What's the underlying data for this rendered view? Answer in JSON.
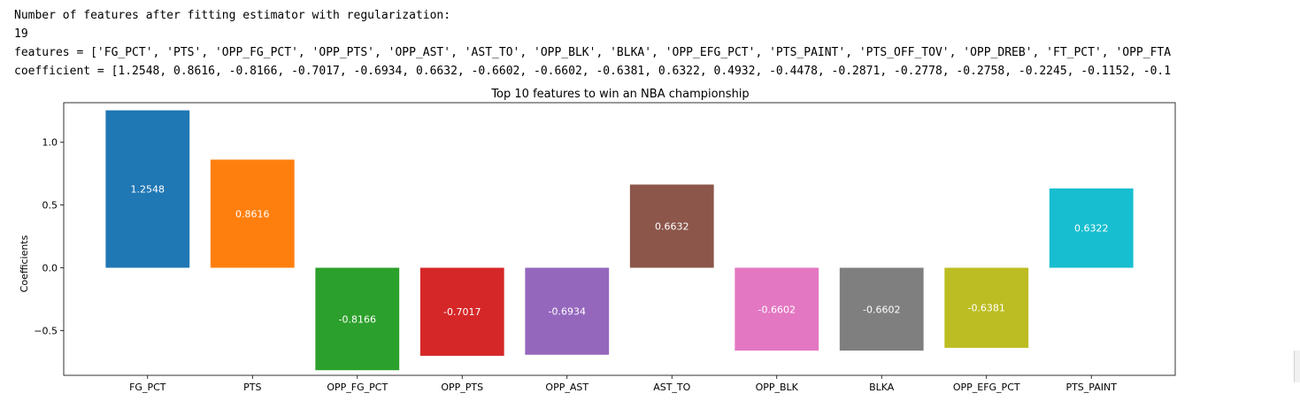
{
  "output": {
    "line1": "Number of features after fitting estimator with regularization:",
    "line2": "19",
    "line3": "features = ['FG_PCT', 'PTS', 'OPP_FG_PCT', 'OPP_PTS', 'OPP_AST', 'AST_TO', 'OPP_BLK', 'BLKA', 'OPP_EFG_PCT', 'PTS_PAINT', 'PTS_OFF_TOV', 'OPP_DREB', 'FT_PCT', 'OPP_FTA",
    "line4": "coefficient = [1.2548, 0.8616, -0.8166, -0.7017, -0.6934, 0.6632, -0.6602, -0.6602, -0.6381, 0.6322, 0.4932, -0.4478, -0.2871, -0.2778, -0.2758, -0.2245, -0.1152, -0.1"
  },
  "chart_data": {
    "type": "bar",
    "title": "Top 10 features to win an NBA championship",
    "xlabel": "",
    "ylabel": "Coefficients",
    "categories": [
      "FG_PCT",
      "PTS",
      "OPP_FG_PCT",
      "OPP_PTS",
      "OPP_AST",
      "AST_TO",
      "OPP_BLK",
      "BLKA",
      "OPP_EFG_PCT",
      "PTS_PAINT"
    ],
    "values": [
      1.2548,
      0.8616,
      -0.8166,
      -0.7017,
      -0.6934,
      0.6632,
      -0.6602,
      -0.6602,
      -0.6381,
      0.6322
    ],
    "value_labels": [
      "1.2548",
      "0.8616",
      "-0.8166",
      "-0.7017",
      "-0.6934",
      "0.6632",
      "-0.6602",
      "-0.6602",
      "-0.6381",
      "0.6322"
    ],
    "colors": [
      "#1f77b4",
      "#ff7f0e",
      "#2ca02c",
      "#d62728",
      "#9467bd",
      "#8c564b",
      "#e377c2",
      "#7f7f7f",
      "#bcbd22",
      "#17becf"
    ],
    "yticks": [
      1.0,
      0.5,
      0.0,
      -0.5
    ],
    "ytick_labels": [
      "1.0",
      "0.5",
      "0.0",
      "−0.5"
    ],
    "ylim": [
      -0.8574,
      1.3156
    ],
    "grid": false,
    "legend": "none"
  }
}
